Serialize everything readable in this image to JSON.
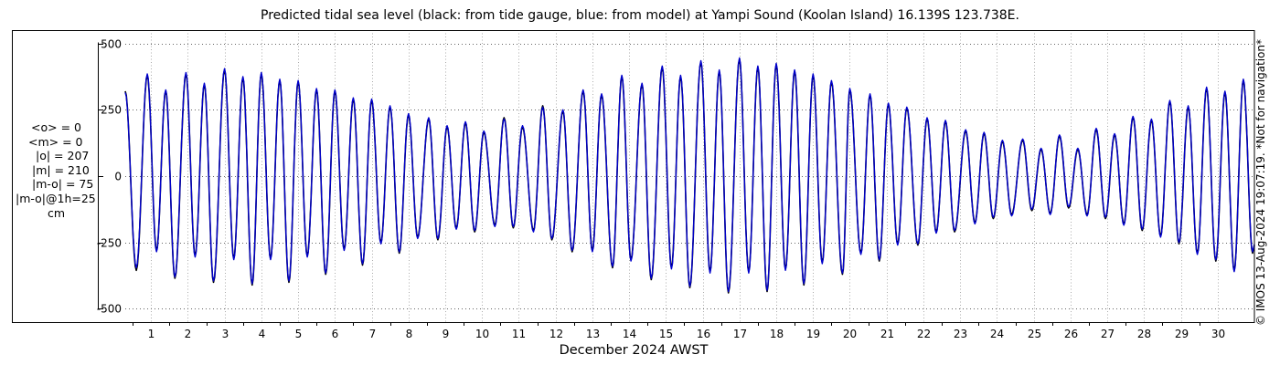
{
  "title": "Predicted tidal sea level (black: from tide gauge, blue: from model) at Yampi Sound (Koolan Island) 16.139S 123.738E.",
  "stats": [
    "<o> = 0",
    "<m> = 0",
    "|o| = 207",
    "|m| = 210",
    "|m-o| = 75",
    "|m-o|@1h=25",
    "cm"
  ],
  "credit": "© IMOS 13-Aug-2024 19:07:19. *Not for navigation*",
  "colors": {
    "gauge": "#000000",
    "model": "#0000cc"
  },
  "chart_data": {
    "type": "line",
    "title": "Predicted tidal sea level (black: from tide gauge, blue: from model) at Yampi Sound (Koolan Island) 16.139S 123.738E.",
    "xlabel": "December 2024 AWST",
    "ylabel": "",
    "xlim": [
      0.3,
      31.0
    ],
    "ylim": [
      -550,
      550
    ],
    "y_ticks": [
      -500,
      -250,
      0,
      250,
      500
    ],
    "y_tick_labels": [
      "-500",
      "-250",
      "0",
      "250",
      "500"
    ],
    "x_ticks": [
      1,
      2,
      3,
      4,
      5,
      6,
      7,
      8,
      9,
      10,
      11,
      12,
      13,
      14,
      15,
      16,
      17,
      18,
      19,
      20,
      21,
      22,
      23,
      24,
      25,
      26,
      27,
      28,
      29,
      30
    ],
    "x_tick_labels": [
      "1",
      "2",
      "3",
      "4",
      "5",
      "6",
      "7",
      "8",
      "9",
      "10",
      "11",
      "12",
      "13",
      "14",
      "15",
      "16",
      "17",
      "18",
      "19",
      "20",
      "21",
      "22",
      "23",
      "24",
      "25",
      "26",
      "27",
      "28",
      "29",
      "30"
    ],
    "grid": true,
    "semidiurnal_period_days": 0.5175,
    "x_start": 0.3,
    "x_step": 0.02,
    "series": [
      {
        "name": "black: from tide gauge",
        "color": "#000000",
        "high_water": [
          {
            "x": 0.3,
            "y": 320
          },
          {
            "x": 0.9,
            "y": 380
          },
          {
            "x": 1.4,
            "y": 320
          },
          {
            "x": 1.95,
            "y": 385
          },
          {
            "x": 2.45,
            "y": 345
          },
          {
            "x": 3.0,
            "y": 400
          },
          {
            "x": 3.5,
            "y": 370
          },
          {
            "x": 4.0,
            "y": 385
          },
          {
            "x": 4.5,
            "y": 360
          },
          {
            "x": 5.0,
            "y": 355
          },
          {
            "x": 5.5,
            "y": 325
          },
          {
            "x": 6.0,
            "y": 320
          },
          {
            "x": 6.5,
            "y": 290
          },
          {
            "x": 7.0,
            "y": 285
          },
          {
            "x": 7.5,
            "y": 260
          },
          {
            "x": 8.0,
            "y": 230
          },
          {
            "x": 8.55,
            "y": 215
          },
          {
            "x": 9.05,
            "y": 185
          },
          {
            "x": 9.55,
            "y": 200
          },
          {
            "x": 10.05,
            "y": 165
          },
          {
            "x": 10.6,
            "y": 220
          },
          {
            "x": 11.1,
            "y": 185
          },
          {
            "x": 11.65,
            "y": 265
          },
          {
            "x": 12.2,
            "y": 245
          },
          {
            "x": 12.75,
            "y": 320
          },
          {
            "x": 13.25,
            "y": 305
          },
          {
            "x": 13.8,
            "y": 375
          },
          {
            "x": 14.35,
            "y": 345
          },
          {
            "x": 14.9,
            "y": 410
          },
          {
            "x": 15.4,
            "y": 375
          },
          {
            "x": 15.95,
            "y": 430
          },
          {
            "x": 16.45,
            "y": 395
          },
          {
            "x": 17.0,
            "y": 440
          },
          {
            "x": 17.5,
            "y": 410
          },
          {
            "x": 18.0,
            "y": 420
          },
          {
            "x": 18.5,
            "y": 395
          },
          {
            "x": 19.0,
            "y": 380
          },
          {
            "x": 19.5,
            "y": 355
          },
          {
            "x": 20.0,
            "y": 325
          },
          {
            "x": 20.55,
            "y": 305
          },
          {
            "x": 21.05,
            "y": 270
          },
          {
            "x": 21.55,
            "y": 255
          },
          {
            "x": 22.1,
            "y": 215
          },
          {
            "x": 22.6,
            "y": 205
          },
          {
            "x": 23.15,
            "y": 170
          },
          {
            "x": 23.65,
            "y": 160
          },
          {
            "x": 24.15,
            "y": 130
          },
          {
            "x": 24.7,
            "y": 135
          },
          {
            "x": 25.2,
            "y": 100
          },
          {
            "x": 25.7,
            "y": 150
          },
          {
            "x": 26.2,
            "y": 100
          },
          {
            "x": 26.7,
            "y": 175
          },
          {
            "x": 27.2,
            "y": 155
          },
          {
            "x": 27.7,
            "y": 220
          },
          {
            "x": 28.2,
            "y": 210
          },
          {
            "x": 28.7,
            "y": 280
          },
          {
            "x": 29.2,
            "y": 260
          },
          {
            "x": 29.7,
            "y": 330
          },
          {
            "x": 30.2,
            "y": 315
          },
          {
            "x": 30.7,
            "y": 360
          }
        ],
        "low_water": [
          {
            "x": 0.6,
            "y": -355
          },
          {
            "x": 1.15,
            "y": -280
          },
          {
            "x": 1.65,
            "y": -385
          },
          {
            "x": 2.2,
            "y": -300
          },
          {
            "x": 2.7,
            "y": -400
          },
          {
            "x": 3.25,
            "y": -310
          },
          {
            "x": 3.75,
            "y": -410
          },
          {
            "x": 4.25,
            "y": -310
          },
          {
            "x": 4.75,
            "y": -400
          },
          {
            "x": 5.25,
            "y": -300
          },
          {
            "x": 5.75,
            "y": -370
          },
          {
            "x": 6.25,
            "y": -275
          },
          {
            "x": 6.75,
            "y": -335
          },
          {
            "x": 7.25,
            "y": -250
          },
          {
            "x": 7.75,
            "y": -290
          },
          {
            "x": 8.25,
            "y": -230
          },
          {
            "x": 8.8,
            "y": -240
          },
          {
            "x": 9.3,
            "y": -195
          },
          {
            "x": 9.8,
            "y": -210
          },
          {
            "x": 10.35,
            "y": -185
          },
          {
            "x": 10.85,
            "y": -195
          },
          {
            "x": 11.4,
            "y": -205
          },
          {
            "x": 11.9,
            "y": -240
          },
          {
            "x": 12.45,
            "y": -285
          },
          {
            "x": 13.0,
            "y": -280
          },
          {
            "x": 13.55,
            "y": -345
          },
          {
            "x": 14.05,
            "y": -315
          },
          {
            "x": 14.6,
            "y": -390
          },
          {
            "x": 15.15,
            "y": -345
          },
          {
            "x": 15.65,
            "y": -420
          },
          {
            "x": 16.2,
            "y": -360
          },
          {
            "x": 16.7,
            "y": -440
          },
          {
            "x": 17.25,
            "y": -360
          },
          {
            "x": 17.75,
            "y": -435
          },
          {
            "x": 18.25,
            "y": -350
          },
          {
            "x": 18.75,
            "y": -410
          },
          {
            "x": 19.25,
            "y": -325
          },
          {
            "x": 19.8,
            "y": -370
          },
          {
            "x": 20.3,
            "y": -290
          },
          {
            "x": 20.8,
            "y": -320
          },
          {
            "x": 21.3,
            "y": -255
          },
          {
            "x": 21.85,
            "y": -260
          },
          {
            "x": 22.35,
            "y": -210
          },
          {
            "x": 22.85,
            "y": -210
          },
          {
            "x": 23.4,
            "y": -175
          },
          {
            "x": 23.9,
            "y": -160
          },
          {
            "x": 24.4,
            "y": -145
          },
          {
            "x": 24.95,
            "y": -130
          },
          {
            "x": 25.45,
            "y": -140
          },
          {
            "x": 25.95,
            "y": -120
          },
          {
            "x": 26.45,
            "y": -145
          },
          {
            "x": 26.95,
            "y": -160
          },
          {
            "x": 27.45,
            "y": -180
          },
          {
            "x": 27.95,
            "y": -205
          },
          {
            "x": 28.45,
            "y": -225
          },
          {
            "x": 28.95,
            "y": -255
          },
          {
            "x": 29.45,
            "y": -290
          },
          {
            "x": 29.95,
            "y": -320
          },
          {
            "x": 30.45,
            "y": -355
          },
          {
            "x": 30.95,
            "y": -290
          }
        ]
      },
      {
        "name": "blue: from model",
        "color": "#0000cc",
        "high_water": [
          {
            "x": 0.3,
            "y": 315
          },
          {
            "x": 0.9,
            "y": 385
          },
          {
            "x": 1.4,
            "y": 325
          },
          {
            "x": 1.95,
            "y": 390
          },
          {
            "x": 2.45,
            "y": 350
          },
          {
            "x": 3.0,
            "y": 405
          },
          {
            "x": 3.5,
            "y": 375
          },
          {
            "x": 4.0,
            "y": 390
          },
          {
            "x": 4.5,
            "y": 365
          },
          {
            "x": 5.0,
            "y": 360
          },
          {
            "x": 5.5,
            "y": 330
          },
          {
            "x": 6.0,
            "y": 325
          },
          {
            "x": 6.5,
            "y": 295
          },
          {
            "x": 7.0,
            "y": 290
          },
          {
            "x": 7.5,
            "y": 265
          },
          {
            "x": 8.0,
            "y": 235
          },
          {
            "x": 8.55,
            "y": 220
          },
          {
            "x": 9.05,
            "y": 190
          },
          {
            "x": 9.55,
            "y": 205
          },
          {
            "x": 10.05,
            "y": 170
          },
          {
            "x": 10.6,
            "y": 215
          },
          {
            "x": 11.1,
            "y": 190
          },
          {
            "x": 11.65,
            "y": 260
          },
          {
            "x": 12.2,
            "y": 250
          },
          {
            "x": 12.75,
            "y": 325
          },
          {
            "x": 13.25,
            "y": 310
          },
          {
            "x": 13.8,
            "y": 380
          },
          {
            "x": 14.35,
            "y": 350
          },
          {
            "x": 14.9,
            "y": 415
          },
          {
            "x": 15.4,
            "y": 380
          },
          {
            "x": 15.95,
            "y": 435
          },
          {
            "x": 16.45,
            "y": 400
          },
          {
            "x": 17.0,
            "y": 445
          },
          {
            "x": 17.5,
            "y": 415
          },
          {
            "x": 18.0,
            "y": 425
          },
          {
            "x": 18.5,
            "y": 400
          },
          {
            "x": 19.0,
            "y": 385
          },
          {
            "x": 19.5,
            "y": 360
          },
          {
            "x": 20.0,
            "y": 330
          },
          {
            "x": 20.55,
            "y": 310
          },
          {
            "x": 21.05,
            "y": 275
          },
          {
            "x": 21.55,
            "y": 260
          },
          {
            "x": 22.1,
            "y": 220
          },
          {
            "x": 22.6,
            "y": 210
          },
          {
            "x": 23.15,
            "y": 175
          },
          {
            "x": 23.65,
            "y": 165
          },
          {
            "x": 24.15,
            "y": 135
          },
          {
            "x": 24.7,
            "y": 140
          },
          {
            "x": 25.2,
            "y": 105
          },
          {
            "x": 25.7,
            "y": 155
          },
          {
            "x": 26.2,
            "y": 105
          },
          {
            "x": 26.7,
            "y": 180
          },
          {
            "x": 27.2,
            "y": 160
          },
          {
            "x": 27.7,
            "y": 225
          },
          {
            "x": 28.2,
            "y": 215
          },
          {
            "x": 28.7,
            "y": 285
          },
          {
            "x": 29.2,
            "y": 265
          },
          {
            "x": 29.7,
            "y": 335
          },
          {
            "x": 30.2,
            "y": 320
          },
          {
            "x": 30.7,
            "y": 365
          }
        ],
        "low_water": [
          {
            "x": 0.6,
            "y": -345
          },
          {
            "x": 1.15,
            "y": -285
          },
          {
            "x": 1.65,
            "y": -380
          },
          {
            "x": 2.2,
            "y": -305
          },
          {
            "x": 2.7,
            "y": -395
          },
          {
            "x": 3.25,
            "y": -315
          },
          {
            "x": 3.75,
            "y": -405
          },
          {
            "x": 4.25,
            "y": -315
          },
          {
            "x": 4.75,
            "y": -395
          },
          {
            "x": 5.25,
            "y": -305
          },
          {
            "x": 5.75,
            "y": -365
          },
          {
            "x": 6.25,
            "y": -280
          },
          {
            "x": 6.75,
            "y": -330
          },
          {
            "x": 7.25,
            "y": -255
          },
          {
            "x": 7.75,
            "y": -285
          },
          {
            "x": 8.25,
            "y": -235
          },
          {
            "x": 8.8,
            "y": -235
          },
          {
            "x": 9.3,
            "y": -200
          },
          {
            "x": 9.8,
            "y": -205
          },
          {
            "x": 10.35,
            "y": -190
          },
          {
            "x": 10.85,
            "y": -190
          },
          {
            "x": 11.4,
            "y": -210
          },
          {
            "x": 11.9,
            "y": -235
          },
          {
            "x": 12.45,
            "y": -280
          },
          {
            "x": 13.0,
            "y": -285
          },
          {
            "x": 13.55,
            "y": -340
          },
          {
            "x": 14.05,
            "y": -320
          },
          {
            "x": 14.6,
            "y": -385
          },
          {
            "x": 15.15,
            "y": -350
          },
          {
            "x": 15.65,
            "y": -415
          },
          {
            "x": 16.2,
            "y": -365
          },
          {
            "x": 16.7,
            "y": -435
          },
          {
            "x": 17.25,
            "y": -365
          },
          {
            "x": 17.75,
            "y": -430
          },
          {
            "x": 18.25,
            "y": -355
          },
          {
            "x": 18.75,
            "y": -405
          },
          {
            "x": 19.25,
            "y": -330
          },
          {
            "x": 19.8,
            "y": -365
          },
          {
            "x": 20.3,
            "y": -295
          },
          {
            "x": 20.8,
            "y": -315
          },
          {
            "x": 21.3,
            "y": -260
          },
          {
            "x": 21.85,
            "y": -255
          },
          {
            "x": 22.35,
            "y": -215
          },
          {
            "x": 22.85,
            "y": -205
          },
          {
            "x": 23.4,
            "y": -180
          },
          {
            "x": 23.9,
            "y": -155
          },
          {
            "x": 24.4,
            "y": -150
          },
          {
            "x": 24.95,
            "y": -125
          },
          {
            "x": 25.45,
            "y": -145
          },
          {
            "x": 25.95,
            "y": -115
          },
          {
            "x": 26.45,
            "y": -150
          },
          {
            "x": 26.95,
            "y": -155
          },
          {
            "x": 27.45,
            "y": -185
          },
          {
            "x": 27.95,
            "y": -200
          },
          {
            "x": 28.45,
            "y": -230
          },
          {
            "x": 28.95,
            "y": -250
          },
          {
            "x": 29.45,
            "y": -295
          },
          {
            "x": 29.95,
            "y": -315
          },
          {
            "x": 30.45,
            "y": -360
          },
          {
            "x": 30.95,
            "y": -285
          }
        ]
      }
    ]
  }
}
